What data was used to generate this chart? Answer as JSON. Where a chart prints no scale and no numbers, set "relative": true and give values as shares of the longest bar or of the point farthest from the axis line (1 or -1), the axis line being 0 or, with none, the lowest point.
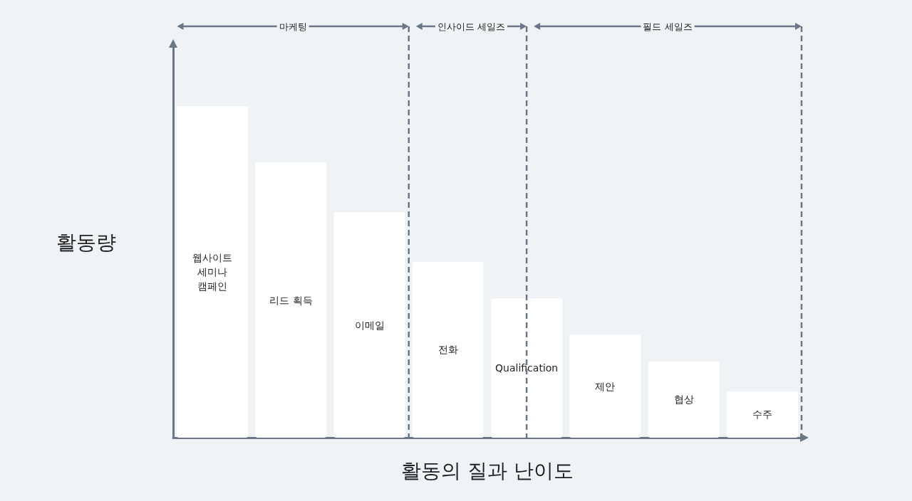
{
  "chart_data": {
    "type": "bar",
    "relative": true,
    "xlabel": "활동의 질과 난이도",
    "ylabel": "활동량",
    "categories": [
      "웹사이트\n세미나\n캠페인",
      "리드 획득",
      "이메일",
      "전화",
      "Qualification",
      "제안",
      "협상",
      "수주"
    ],
    "values": [
      1,
      0.83,
      0.68,
      0.53,
      0.42,
      0.31,
      0.23,
      0.14
    ],
    "color": "#ffffff",
    "annotations": [
      "마케팅",
      "인사이드 세일즈",
      "필드 세일즈"
    ],
    "grid": false
  }
}
